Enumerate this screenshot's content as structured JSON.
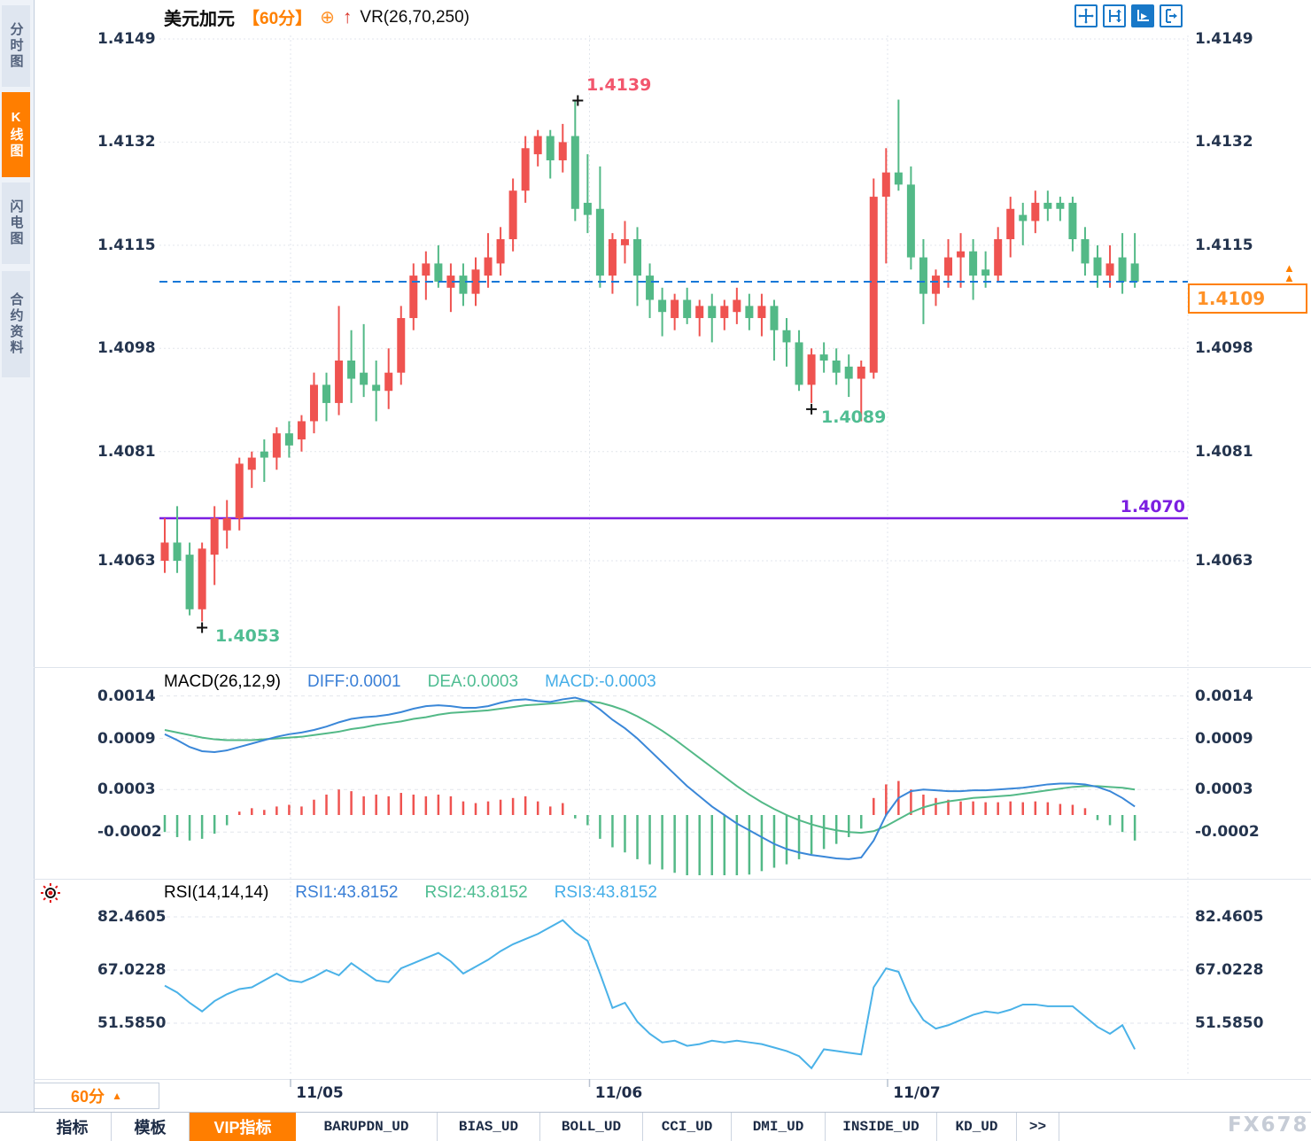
{
  "sidebar": {
    "items": [
      {
        "label": "分时图",
        "active": false
      },
      {
        "label": "K线图",
        "active": true
      },
      {
        "label": "闪电图",
        "active": false
      },
      {
        "label": "合约资料",
        "active": false
      }
    ]
  },
  "header": {
    "symbol": "美元加元",
    "period_label": "【60分】",
    "add_icon": "⊕",
    "up_arrow": "↑",
    "indicator": "VR(26,70,250)"
  },
  "toolbar_icons": [
    "crosshair",
    "y-axis-range",
    "auto-fit",
    "pan-right"
  ],
  "price_axis": {
    "labels": [
      "1.4149",
      "1.4132",
      "1.4115",
      "1.4098",
      "1.4081",
      "1.4063"
    ]
  },
  "macd_header": {
    "title": "MACD(26,12,9)",
    "diff": "DIFF:0.0001",
    "dea": "DEA:0.0003",
    "macd": "MACD:-0.0003"
  },
  "rsi_header": {
    "title": "RSI(14,14,14)",
    "rsi1": "RSI1:43.8152",
    "rsi2": "RSI2:43.8152",
    "rsi3": "RSI3:43.8152"
  },
  "annotations": {
    "high": "1.4139",
    "low": "1.4053",
    "swing_low": "1.4089",
    "support": "1.4070",
    "last_price": "1.4109",
    "marker_triangles": "▲"
  },
  "period_selector": {
    "label": "60分",
    "arrow": "▲"
  },
  "bottom_tabs": [
    {
      "label": "指标",
      "active": false,
      "mono": false
    },
    {
      "label": "模板",
      "active": false,
      "mono": false
    },
    {
      "label": "VIP指标",
      "active": true,
      "mono": false
    },
    {
      "label": "BARUPDN_UD",
      "active": false,
      "mono": true
    },
    {
      "label": "BIAS_UD",
      "active": false,
      "mono": true
    },
    {
      "label": "BOLL_UD",
      "active": false,
      "mono": true
    },
    {
      "label": "CCI_UD",
      "active": false,
      "mono": true
    },
    {
      "label": "DMI_UD",
      "active": false,
      "mono": true
    },
    {
      "label": "INSIDE_UD",
      "active": false,
      "mono": true
    },
    {
      "label": "KD_UD",
      "active": false,
      "mono": true
    },
    {
      "label": ">>",
      "active": false,
      "mono": true
    }
  ],
  "watermark": "FX678",
  "colors": {
    "up": "#ef5350",
    "down": "#53b987",
    "diff_line": "#3a87d8",
    "dea_line": "#53b987",
    "rsi_line": "#4ab2e8",
    "last_price_line": "#1778d8",
    "support_line": "#7c1fe1",
    "accent_orange": "#ff7e00",
    "grid": "#e2e6ec",
    "axis_text": "#24344e"
  },
  "chart_data": [
    {
      "type": "candlestick",
      "panel": "price",
      "title": "美元加元 60分",
      "ylim": [
        1.4046,
        1.4152
      ],
      "yticks": [
        "1.4149",
        "1.4132",
        "1.4115",
        "1.4098",
        "1.4081",
        "1.4063"
      ],
      "x_dates": [
        "11/05",
        "11/06",
        "11/07"
      ],
      "bars_per_day": 24,
      "high_marker": {
        "bar": 33,
        "label": "1.4139"
      },
      "low_marker": {
        "bar": 3,
        "label": "1.4053"
      },
      "swing_low_marker": {
        "bar": 52,
        "label": "1.4089"
      },
      "support_line": 1.407,
      "last_price_line": 1.4109,
      "candles": [
        [
          1.4063,
          1.407,
          1.4061,
          1.4066
        ],
        [
          1.4066,
          1.4072,
          1.4061,
          1.4063
        ],
        [
          1.4064,
          1.4066,
          1.4054,
          1.4055
        ],
        [
          1.4055,
          1.4066,
          1.4053,
          1.4065
        ],
        [
          1.4064,
          1.4072,
          1.4059,
          1.407
        ],
        [
          1.4068,
          1.4073,
          1.4065,
          1.407
        ],
        [
          1.407,
          1.408,
          1.4068,
          1.4079
        ],
        [
          1.4078,
          1.4081,
          1.4075,
          1.408
        ],
        [
          1.4081,
          1.4083,
          1.4076,
          1.408
        ],
        [
          1.408,
          1.4085,
          1.4078,
          1.4084
        ],
        [
          1.4084,
          1.4086,
          1.408,
          1.4082
        ],
        [
          1.4083,
          1.4087,
          1.4081,
          1.4086
        ],
        [
          1.4086,
          1.4094,
          1.4084,
          1.4092
        ],
        [
          1.4092,
          1.4094,
          1.4086,
          1.4089
        ],
        [
          1.4089,
          1.4105,
          1.4087,
          1.4096
        ],
        [
          1.4096,
          1.4101,
          1.4089,
          1.4093
        ],
        [
          1.4094,
          1.4102,
          1.409,
          1.4092
        ],
        [
          1.4092,
          1.4096,
          1.4086,
          1.4091
        ],
        [
          1.4091,
          1.4098,
          1.4088,
          1.4094
        ],
        [
          1.4094,
          1.4105,
          1.4092,
          1.4103
        ],
        [
          1.4103,
          1.4112,
          1.4101,
          1.411
        ],
        [
          1.411,
          1.4114,
          1.4106,
          1.4112
        ],
        [
          1.4112,
          1.4115,
          1.4108,
          1.4109
        ],
        [
          1.4108,
          1.4112,
          1.4104,
          1.411
        ],
        [
          1.411,
          1.4112,
          1.4105,
          1.4107
        ],
        [
          1.4107,
          1.4113,
          1.4105,
          1.4111
        ],
        [
          1.411,
          1.4117,
          1.4108,
          1.4113
        ],
        [
          1.4112,
          1.4118,
          1.411,
          1.4116
        ],
        [
          1.4116,
          1.4126,
          1.4114,
          1.4124
        ],
        [
          1.4124,
          1.4133,
          1.4122,
          1.4131
        ],
        [
          1.413,
          1.4134,
          1.4128,
          1.4133
        ],
        [
          1.4133,
          1.4134,
          1.4126,
          1.4129
        ],
        [
          1.4129,
          1.4135,
          1.4127,
          1.4132
        ],
        [
          1.4133,
          1.4139,
          1.4119,
          1.4121
        ],
        [
          1.4122,
          1.413,
          1.4117,
          1.412
        ],
        [
          1.4121,
          1.4128,
          1.4108,
          1.411
        ],
        [
          1.411,
          1.4117,
          1.4107,
          1.4116
        ],
        [
          1.4115,
          1.4119,
          1.4112,
          1.4116
        ],
        [
          1.4116,
          1.4118,
          1.4105,
          1.411
        ],
        [
          1.411,
          1.4112,
          1.4103,
          1.4106
        ],
        [
          1.4106,
          1.4108,
          1.41,
          1.4104
        ],
        [
          1.4103,
          1.4107,
          1.4101,
          1.4106
        ],
        [
          1.4106,
          1.4108,
          1.4102,
          1.4103
        ],
        [
          1.4103,
          1.4106,
          1.41,
          1.4105
        ],
        [
          1.4105,
          1.4107,
          1.4099,
          1.4103
        ],
        [
          1.4103,
          1.4106,
          1.4101,
          1.4105
        ],
        [
          1.4104,
          1.4108,
          1.4102,
          1.4106
        ],
        [
          1.4105,
          1.4107,
          1.4101,
          1.4103
        ],
        [
          1.4103,
          1.4107,
          1.41,
          1.4105
        ],
        [
          1.4105,
          1.4106,
          1.4096,
          1.4101
        ],
        [
          1.4101,
          1.4103,
          1.4095,
          1.4099
        ],
        [
          1.4099,
          1.4101,
          1.4091,
          1.4092
        ],
        [
          1.4092,
          1.4098,
          1.4089,
          1.4097
        ],
        [
          1.4097,
          1.4099,
          1.4094,
          1.4096
        ],
        [
          1.4096,
          1.4098,
          1.4092,
          1.4094
        ],
        [
          1.4095,
          1.4097,
          1.409,
          1.4093
        ],
        [
          1.4093,
          1.4096,
          1.4086,
          1.4095
        ],
        [
          1.4094,
          1.4126,
          1.4093,
          1.4123
        ],
        [
          1.4123,
          1.4131,
          1.4112,
          1.4127
        ],
        [
          1.4127,
          1.4139,
          1.4124,
          1.4125
        ],
        [
          1.4125,
          1.4128,
          1.4111,
          1.4113
        ],
        [
          1.4113,
          1.4116,
          1.4102,
          1.4107
        ],
        [
          1.4107,
          1.4111,
          1.4105,
          1.411
        ],
        [
          1.411,
          1.4116,
          1.4108,
          1.4113
        ],
        [
          1.4113,
          1.4117,
          1.4108,
          1.4114
        ],
        [
          1.4114,
          1.4116,
          1.4106,
          1.411
        ],
        [
          1.4111,
          1.4114,
          1.4108,
          1.411
        ],
        [
          1.411,
          1.4118,
          1.4109,
          1.4116
        ],
        [
          1.4116,
          1.4123,
          1.4113,
          1.4121
        ],
        [
          1.412,
          1.4122,
          1.4115,
          1.4119
        ],
        [
          1.4119,
          1.4124,
          1.4117,
          1.4122
        ],
        [
          1.4122,
          1.4124,
          1.4119,
          1.4121
        ],
        [
          1.4122,
          1.4123,
          1.4119,
          1.4121
        ],
        [
          1.4122,
          1.4123,
          1.4114,
          1.4116
        ],
        [
          1.4116,
          1.4118,
          1.411,
          1.4112
        ],
        [
          1.4113,
          1.4115,
          1.4108,
          1.411
        ],
        [
          1.411,
          1.4115,
          1.4108,
          1.4112
        ],
        [
          1.4113,
          1.4117,
          1.4107,
          1.4109
        ],
        [
          1.4112,
          1.4117,
          1.4108,
          1.4109
        ]
      ]
    },
    {
      "type": "bar",
      "panel": "macd",
      "title": "MACD(26,12,9)",
      "yticks": [
        "0.0014",
        "0.0009",
        "0.0003",
        "-0.0002"
      ],
      "series": [
        {
          "name": "DIFF",
          "values": [
            0.00095,
            0.00088,
            0.0008,
            0.00075,
            0.00074,
            0.00076,
            0.0008,
            0.00084,
            0.00088,
            0.00092,
            0.00095,
            0.00097,
            0.001,
            0.00104,
            0.00109,
            0.00113,
            0.00115,
            0.00116,
            0.00118,
            0.00121,
            0.00125,
            0.00128,
            0.00129,
            0.00128,
            0.00126,
            0.00126,
            0.00128,
            0.00132,
            0.00135,
            0.00136,
            0.00134,
            0.00133,
            0.00136,
            0.00138,
            0.00134,
            0.00124,
            0.00112,
            0.00102,
            0.0009,
            0.00076,
            0.00062,
            0.00048,
            0.00034,
            0.00022,
            0.0001,
            0.0,
            -0.0001,
            -0.00018,
            -0.00026,
            -0.00034,
            -0.0004,
            -0.00044,
            -0.00047,
            -0.00049,
            -0.00051,
            -0.00052,
            -0.0005,
            -0.0003,
            0.0,
            0.0002,
            0.00028,
            0.0003,
            0.00029,
            0.00028,
            0.00028,
            0.00029,
            0.00029,
            0.0003,
            0.00031,
            0.00032,
            0.00034,
            0.00036,
            0.00037,
            0.00037,
            0.00036,
            0.00033,
            0.00028,
            0.0002,
            0.0001
          ]
        },
        {
          "name": "DEA",
          "values": [
            0.001,
            0.00097,
            0.00094,
            0.00091,
            0.00089,
            0.00088,
            0.00088,
            0.00088,
            0.00089,
            0.0009,
            0.00091,
            0.00092,
            0.00094,
            0.00096,
            0.00098,
            0.00101,
            0.00103,
            0.00106,
            0.00108,
            0.0011,
            0.00113,
            0.00115,
            0.00118,
            0.0012,
            0.00121,
            0.00122,
            0.00123,
            0.00125,
            0.00127,
            0.00129,
            0.0013,
            0.00131,
            0.00132,
            0.00134,
            0.00134,
            0.00132,
            0.00128,
            0.00123,
            0.00116,
            0.00108,
            0.00099,
            0.00089,
            0.00078,
            0.00067,
            0.00056,
            0.00045,
            0.00034,
            0.00024,
            0.00015,
            7e-05,
            0.0,
            -6e-05,
            -0.00011,
            -0.00015,
            -0.00018,
            -0.0002,
            -0.00021,
            -0.00019,
            -0.00013,
            -5e-05,
            3e-05,
            9e-05,
            0.00013,
            0.00016,
            0.00018,
            0.0002,
            0.00021,
            0.00022,
            0.00023,
            0.00025,
            0.00027,
            0.00029,
            0.00031,
            0.00033,
            0.00034,
            0.00034,
            0.00033,
            0.00032,
            0.0003
          ]
        },
        {
          "name": "MACD",
          "values": [
            -0.0002,
            -0.00026,
            -0.0003,
            -0.00028,
            -0.00022,
            -0.00012,
            4e-05,
            8e-05,
            6e-05,
            0.0001,
            0.00012,
            0.0001,
            0.00018,
            0.00024,
            0.0003,
            0.00028,
            0.00022,
            0.00024,
            0.00022,
            0.00026,
            0.00024,
            0.00022,
            0.00024,
            0.00022,
            0.00016,
            0.00014,
            0.00016,
            0.00018,
            0.0002,
            0.00022,
            0.00016,
            0.0001,
            0.00014,
            -4e-05,
            -0.00012,
            -0.00028,
            -0.00038,
            -0.00044,
            -0.00052,
            -0.00058,
            -0.00064,
            -0.00068,
            -0.00072,
            -0.00074,
            -0.00075,
            -0.00074,
            -0.00072,
            -0.0007,
            -0.00066,
            -0.00062,
            -0.00058,
            -0.00052,
            -0.00046,
            -0.0004,
            -0.00034,
            -0.00026,
            -0.00016,
            0.0002,
            0.00036,
            0.0004,
            0.0003,
            0.00024,
            0.0002,
            0.00018,
            0.00016,
            0.00016,
            0.00015,
            0.00015,
            0.00016,
            0.00015,
            0.00016,
            0.00015,
            0.00013,
            0.00012,
            8e-05,
            -6e-05,
            -0.00012,
            -0.0002,
            -0.0003
          ]
        }
      ]
    },
    {
      "type": "line",
      "panel": "rsi",
      "title": "RSI(14,14,14)",
      "yticks": [
        "82.4605",
        "67.0228",
        "51.5850"
      ],
      "overlapping_series": [
        "RSI1",
        "RSI2",
        "RSI3"
      ],
      "series": [
        {
          "name": "RSI1",
          "values": [
            62.5,
            60.5,
            57.5,
            55.0,
            58.0,
            60.0,
            61.5,
            62.0,
            64.0,
            66.0,
            64.0,
            63.5,
            65.0,
            67.0,
            65.5,
            69.0,
            66.5,
            64.0,
            63.5,
            67.5,
            69.0,
            70.5,
            72.0,
            69.5,
            66.0,
            68.0,
            70.0,
            72.5,
            74.5,
            76.0,
            77.5,
            79.5,
            81.5,
            78.0,
            75.5,
            66.0,
            56.0,
            57.5,
            52.0,
            48.5,
            46.0,
            46.5,
            45.0,
            45.5,
            46.5,
            46.0,
            46.5,
            46.0,
            45.5,
            44.5,
            43.5,
            42.0,
            38.5,
            44.0,
            43.5,
            43.0,
            42.5,
            62.0,
            67.5,
            66.5,
            58.0,
            52.5,
            50.0,
            51.0,
            52.5,
            54.0,
            55.0,
            54.5,
            55.5,
            57.0,
            57.0,
            56.5,
            56.5,
            56.5,
            53.5,
            50.5,
            48.5,
            51.0,
            44.0
          ]
        }
      ]
    }
  ]
}
